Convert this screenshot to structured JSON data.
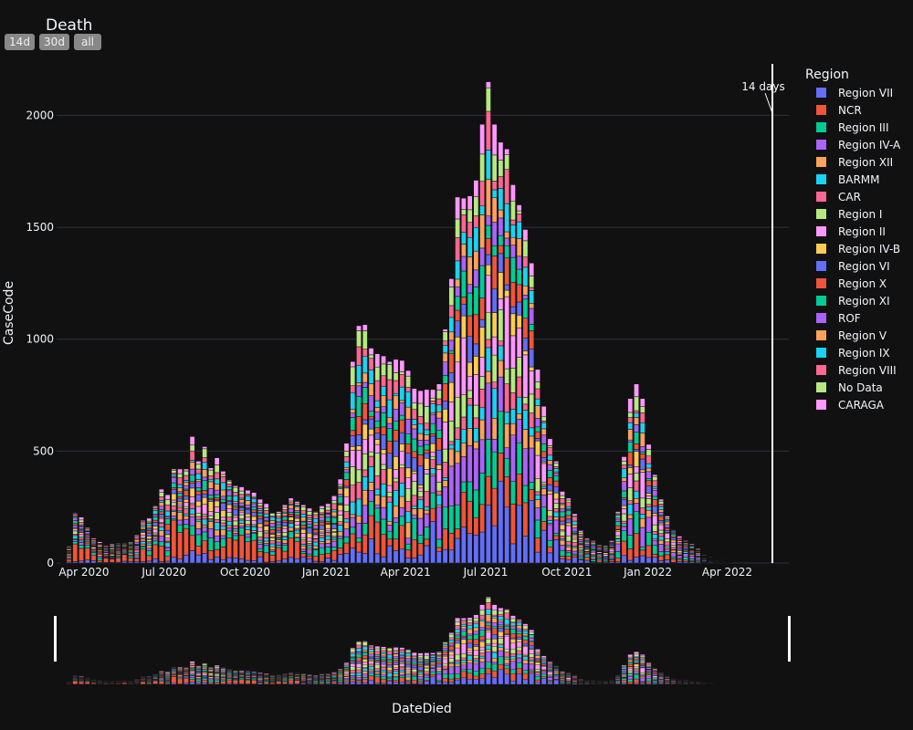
{
  "title": "Death",
  "range_buttons": [
    "14d",
    "30d",
    "all"
  ],
  "annotation": "14 days",
  "legend": {
    "title": "Region",
    "items": [
      {
        "name": "Region VII",
        "color": "#636efa"
      },
      {
        "name": "NCR",
        "color": "#EF553B"
      },
      {
        "name": "Region III",
        "color": "#00cc96"
      },
      {
        "name": "Region IV-A",
        "color": "#ab63fa"
      },
      {
        "name": "Region XII",
        "color": "#FFA15A"
      },
      {
        "name": "BARMM",
        "color": "#19d3f3"
      },
      {
        "name": "CAR",
        "color": "#FF6692"
      },
      {
        "name": "Region I",
        "color": "#B6E880"
      },
      {
        "name": "Region II",
        "color": "#FF97FF"
      },
      {
        "name": "Region IV-B",
        "color": "#FECB52"
      },
      {
        "name": "Region VI",
        "color": "#636efa"
      },
      {
        "name": "Region X",
        "color": "#EF553B"
      },
      {
        "name": "Region XI",
        "color": "#00cc96"
      },
      {
        "name": "ROF",
        "color": "#ab63fa"
      },
      {
        "name": "Region V",
        "color": "#FFA15A"
      },
      {
        "name": "Region IX",
        "color": "#19d3f3"
      },
      {
        "name": "Region VIII",
        "color": "#FF6692"
      },
      {
        "name": "No Data",
        "color": "#B6E880"
      },
      {
        "name": "CARAGA",
        "color": "#FF97FF"
      }
    ]
  },
  "chart_data": {
    "type": "bar",
    "stacked": true,
    "xlabel": "DateDied",
    "ylabel": "CaseCode",
    "ylim": [
      0,
      2230
    ],
    "yticks": [
      0,
      500,
      1000,
      1500,
      2000
    ],
    "xlim": [
      "2020-03-01",
      "2022-06-10"
    ],
    "xticks": [
      {
        "date": "2020-04-01",
        "label": "Apr 2020"
      },
      {
        "date": "2020-07-01",
        "label": "Jul 2020"
      },
      {
        "date": "2020-10-01",
        "label": "Oct 2020"
      },
      {
        "date": "2021-01-01",
        "label": "Jan 2021"
      },
      {
        "date": "2021-04-01",
        "label": "Apr 2021"
      },
      {
        "date": "2021-07-01",
        "label": "Jul 2021"
      },
      {
        "date": "2021-10-01",
        "label": "Oct 2021"
      },
      {
        "date": "2022-01-01",
        "label": "Jan 2022"
      },
      {
        "date": "2022-04-01",
        "label": "Apr 2022"
      }
    ],
    "grid": true,
    "legend_position": "right",
    "week_start": "2020-03-08",
    "weekly_totals": [
      5,
      75,
      225,
      205,
      160,
      115,
      95,
      80,
      85,
      88,
      90,
      95,
      125,
      190,
      200,
      255,
      330,
      305,
      420,
      420,
      420,
      565,
      455,
      520,
      425,
      470,
      410,
      370,
      345,
      340,
      325,
      315,
      285,
      265,
      225,
      230,
      260,
      290,
      275,
      260,
      245,
      230,
      255,
      265,
      300,
      375,
      535,
      900,
      1060,
      1065,
      960,
      935,
      925,
      900,
      910,
      905,
      860,
      780,
      770,
      775,
      775,
      800,
      1045,
      1270,
      1635,
      1630,
      1640,
      1710,
      1960,
      2150,
      1960,
      1880,
      1850,
      1690,
      1600,
      1490,
      1340,
      865,
      700,
      555,
      455,
      320,
      290,
      220,
      145,
      110,
      100,
      80,
      80,
      100,
      230,
      475,
      735,
      800,
      735,
      530,
      395,
      285,
      210,
      150,
      120,
      100,
      85,
      65,
      40,
      30,
      20,
      15,
      10
    ]
  }
}
